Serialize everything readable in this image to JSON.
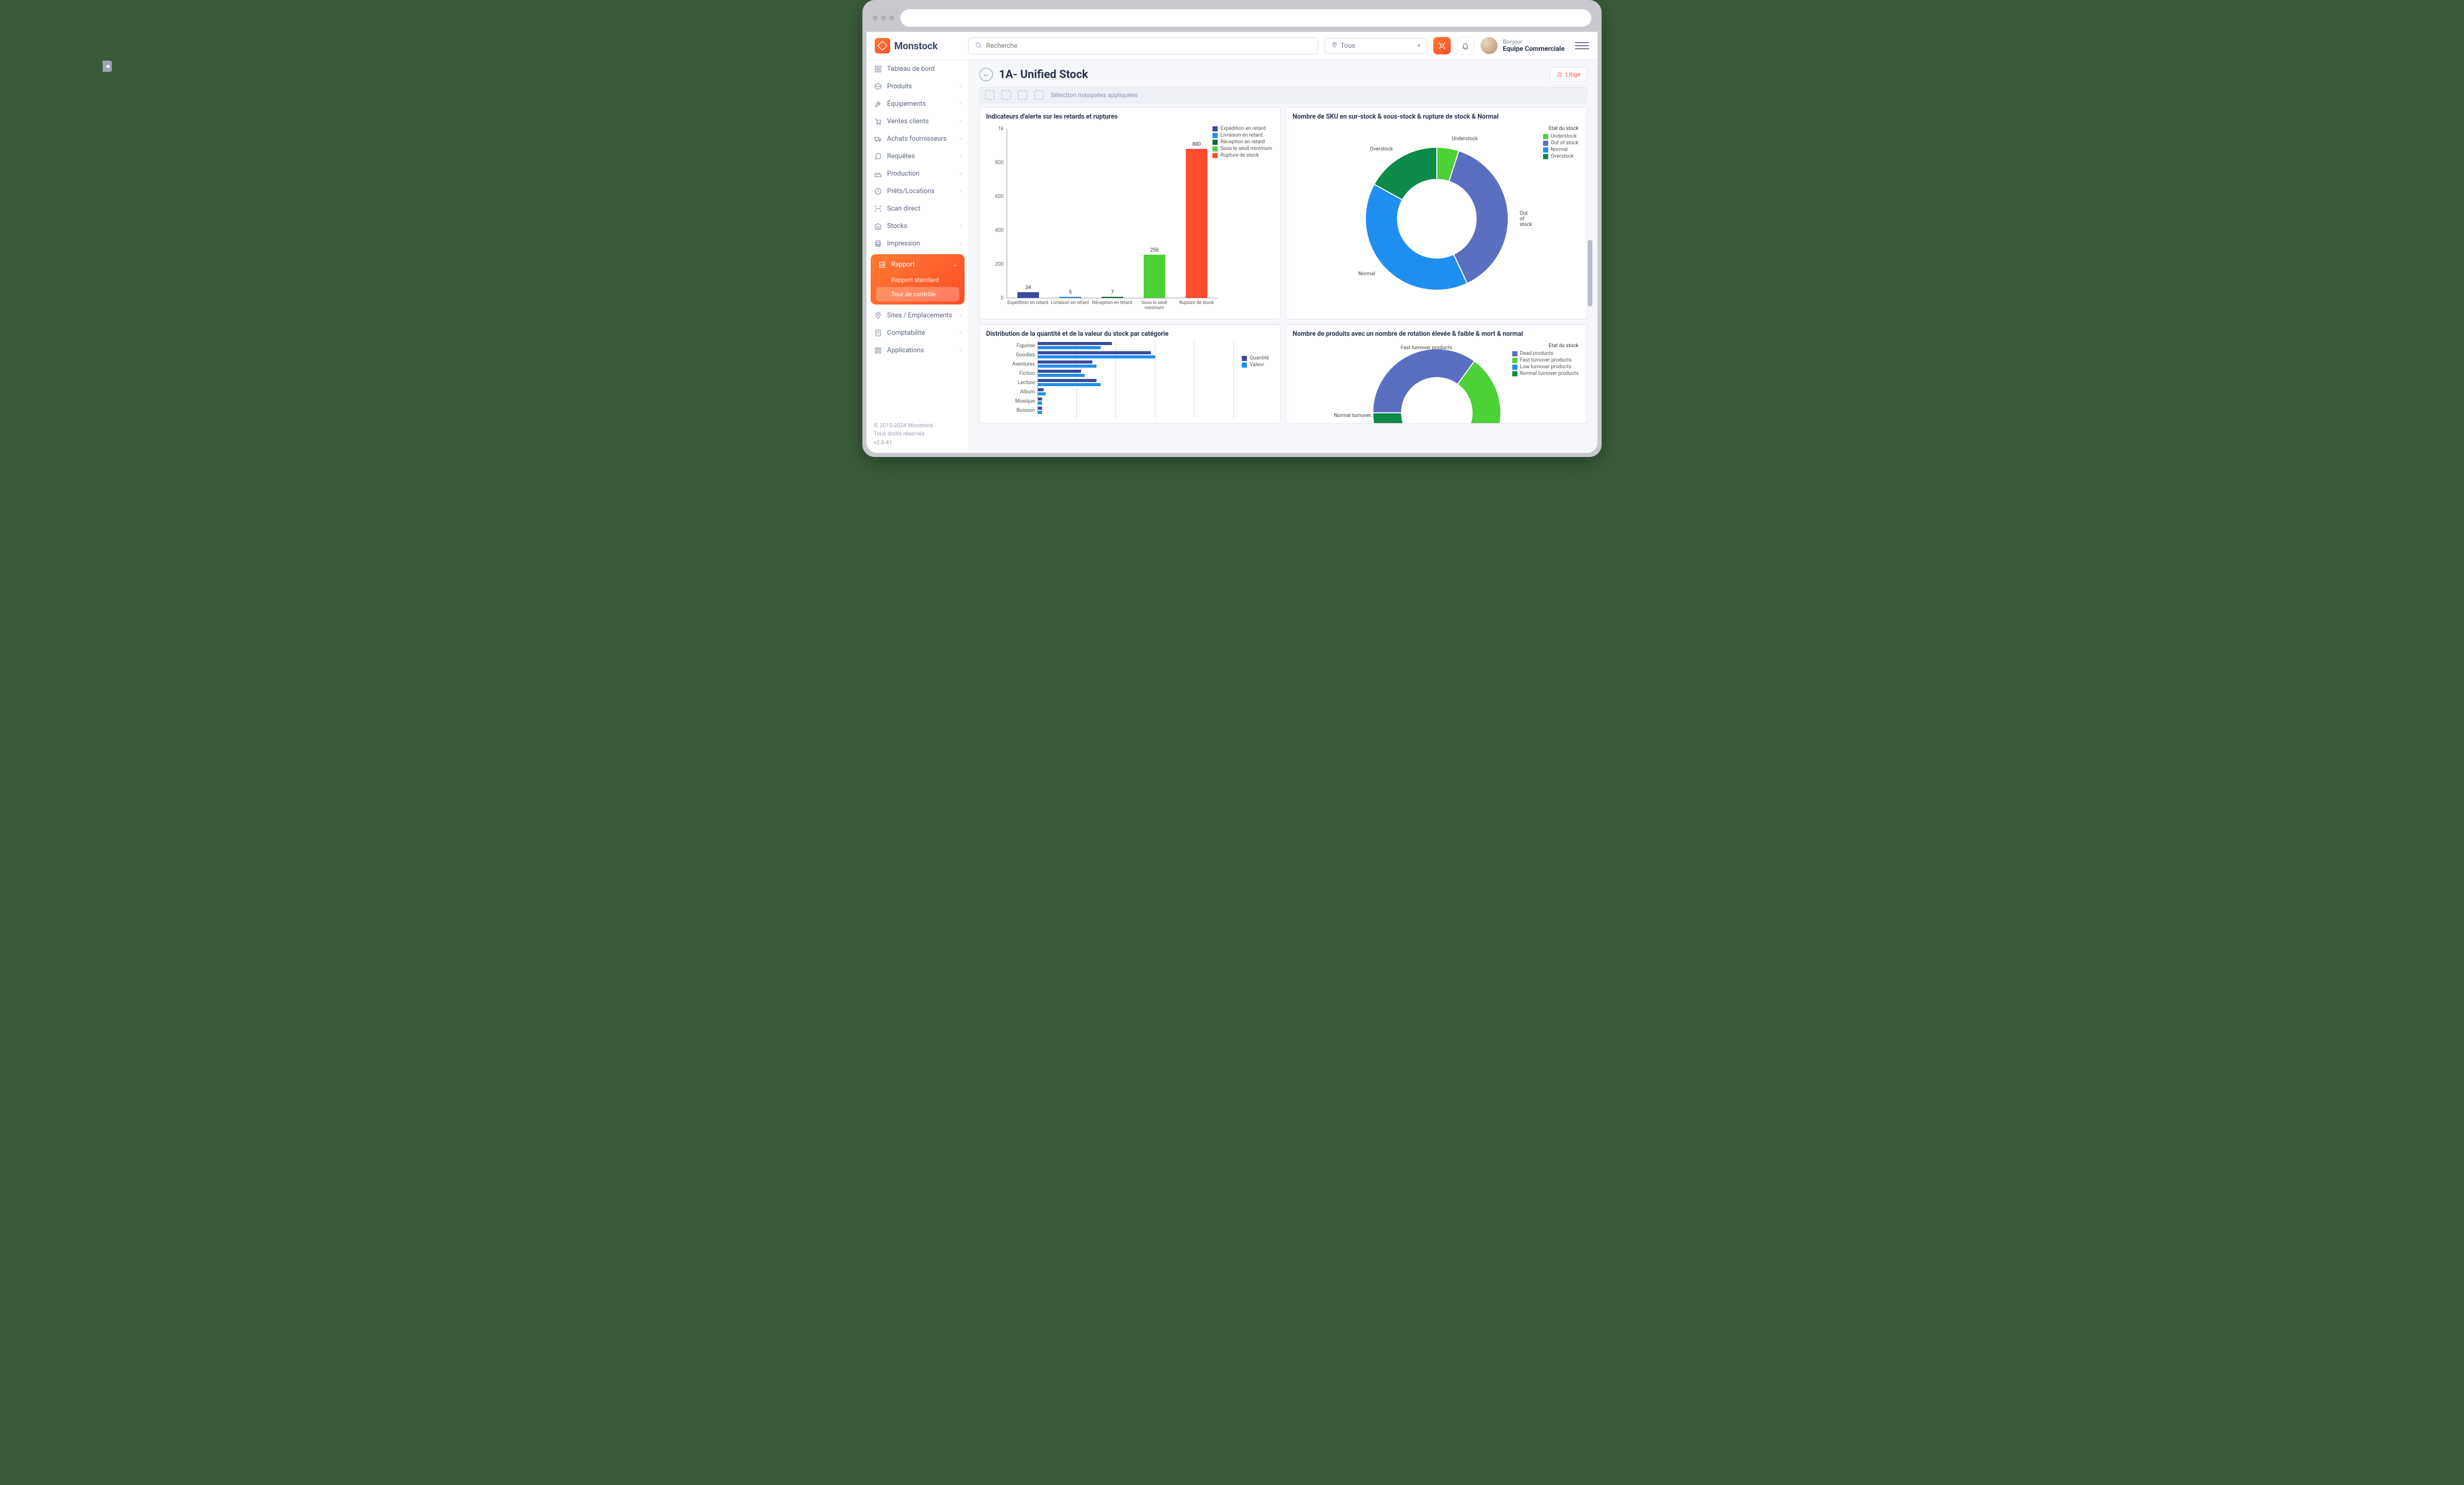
{
  "app_name": "Monstock",
  "search": {
    "placeholder": "Recherche"
  },
  "location_filter": {
    "label": "Tous"
  },
  "user": {
    "greeting": "Bonjour",
    "name": "Equipe Commerciale"
  },
  "sidebar": {
    "items": [
      {
        "label": "Tableau de bord",
        "icon": "grid",
        "expandable": false
      },
      {
        "label": "Produits",
        "icon": "box",
        "expandable": true
      },
      {
        "label": "Équipements",
        "icon": "tool",
        "expandable": true
      },
      {
        "label": "Ventes clients",
        "icon": "cart",
        "expandable": true
      },
      {
        "label": "Achats fournisseurs",
        "icon": "truck",
        "expandable": true
      },
      {
        "label": "Requêtes",
        "icon": "chat",
        "expandable": true
      },
      {
        "label": "Production",
        "icon": "factory",
        "expandable": true
      },
      {
        "label": "Prêts/Locations",
        "icon": "loan",
        "expandable": true
      },
      {
        "label": "Scan direct",
        "icon": "scan",
        "expandable": false
      },
      {
        "label": "Stocks",
        "icon": "warehouse",
        "expandable": true
      },
      {
        "label": "Impression",
        "icon": "print",
        "expandable": true
      }
    ],
    "active_group": {
      "label": "Rapport",
      "icon": "report",
      "subs": [
        {
          "label": "Rapport standard"
        },
        {
          "label": "Tour de contrôle",
          "active": true
        }
      ]
    },
    "items_after": [
      {
        "label": "Sites / Emplacements",
        "icon": "map",
        "expandable": true
      },
      {
        "label": "Comptabilité",
        "icon": "ledger",
        "expandable": true
      },
      {
        "label": "Applications",
        "icon": "apps",
        "expandable": true
      }
    ],
    "footer": {
      "line1": "© 2015-2024 Monstock",
      "line2": "Tous droits réservés.",
      "line3": "v2.0.41"
    }
  },
  "page": {
    "title": "1A- Unified Stock",
    "litige_label": "Litige",
    "toolbar_hint": "Sélection masquées appliquées"
  },
  "chart_alert": {
    "type": "bar",
    "title": "Indicateurs d'alerte sur les retards et ruptures",
    "categories": [
      "Expédition en retard",
      "Livraison en retard",
      "Réception en retard",
      "Sous le seuil minimum",
      "Rupture de stock"
    ],
    "values": [
      34,
      5,
      7,
      256,
      880
    ],
    "bar_colors": [
      "#3a4a9e",
      "#1f8ef1",
      "#0b6b3a",
      "#4cd137",
      "#ff4d2e"
    ],
    "ylim": [
      0,
      1000
    ],
    "ytick_step": 200,
    "ytick_labels": [
      "0",
      "200",
      "400",
      "600",
      "800",
      "1k"
    ],
    "legend": [
      {
        "label": "Expédition en retard",
        "color": "#3a4a9e"
      },
      {
        "label": "Livraison en retard",
        "color": "#1f8ef1"
      },
      {
        "label": "Réception en retard",
        "color": "#0b6b3a"
      },
      {
        "label": "Sous le seuil minimum",
        "color": "#4cd137"
      },
      {
        "label": "Rupture de stock",
        "color": "#ff4d2e"
      }
    ],
    "background_color": "#ffffff",
    "grid_color": "#e0e0e0"
  },
  "chart_sku": {
    "type": "donut",
    "title": "Nombre de SKU en sur-stock & sous-stock & rupture de stock & Normal",
    "legend_title": "Etat du stock",
    "slices": [
      {
        "label": "Normal",
        "value": 40,
        "color": "#1f8ef1"
      },
      {
        "label": "Out of stock",
        "value": 38,
        "color": "#5a6fbf"
      },
      {
        "label": "Overstock",
        "value": 17,
        "color": "#0b8a4a"
      },
      {
        "label": "Understock",
        "value": 5,
        "color": "#4cd137"
      }
    ],
    "annotations": [
      "Normal",
      "Out of stock",
      "Overstock",
      "Understock"
    ],
    "inner_radius_ratio": 0.55
  },
  "chart_dist": {
    "type": "hbar",
    "title": "Distribution de la quantité et de la valeur du stock par catégorie",
    "categories": [
      "Figurine",
      "Goodies",
      "Aventures",
      "Fiction",
      "Lecture",
      "Album",
      "Musique",
      "Boisson"
    ],
    "series": [
      {
        "name": "Quantité",
        "color": "#3a4a9e",
        "values": [
          38,
          58,
          28,
          22,
          30,
          3,
          2,
          2
        ]
      },
      {
        "name": "Valeur",
        "color": "#1f8ef1",
        "values": [
          32,
          60,
          30,
          24,
          32,
          4,
          2,
          2
        ]
      }
    ],
    "xmax": 100
  },
  "chart_turnover": {
    "type": "donut",
    "title": "Nombre de produits avec un nombre de rotation élevée & faible & mort & normal",
    "legend_title": "Etat du stock",
    "slices": [
      {
        "label": "Dead products",
        "value": 35,
        "color": "#5a6fbf"
      },
      {
        "label": "Fast turnover products",
        "value": 20,
        "color": "#4cd137"
      },
      {
        "label": "Low turnover products",
        "value": 15,
        "color": "#1f8ef1"
      },
      {
        "label": "Normal turnover products",
        "value": 30,
        "color": "#0b8a4a"
      }
    ],
    "annotations": [
      "Fast turnover products",
      "Normal turnover..."
    ]
  }
}
